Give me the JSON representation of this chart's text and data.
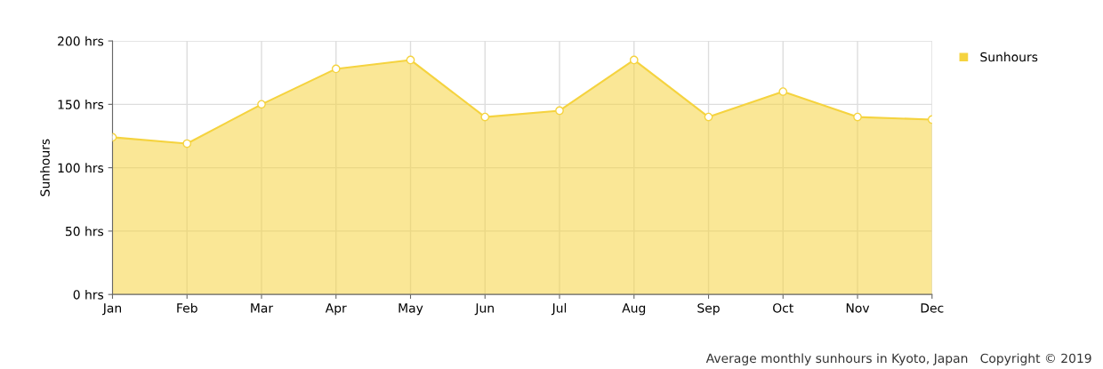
{
  "chart_data": {
    "type": "area",
    "ylabel": "Sunhours",
    "categories": [
      "Jan",
      "Feb",
      "Mar",
      "Apr",
      "May",
      "Jun",
      "Jul",
      "Aug",
      "Sep",
      "Oct",
      "Nov",
      "Dec"
    ],
    "series": [
      {
        "name": "Sunhours",
        "color": "#f5d33f",
        "values": [
          124,
          119,
          150,
          178,
          185,
          140,
          145,
          185,
          140,
          160,
          140,
          138
        ]
      }
    ],
    "ylim": [
      0,
      200
    ],
    "yticks": [
      {
        "value": 0,
        "label": "0 hrs"
      },
      {
        "value": 50,
        "label": "50 hrs"
      },
      {
        "value": 100,
        "label": "100 hrs"
      },
      {
        "value": 150,
        "label": "150 hrs"
      },
      {
        "value": 200,
        "label": "200 hrs"
      }
    ],
    "grid": true,
    "legend": "top right",
    "marker": "circle",
    "annotations": [
      "Average monthly sunhours in Kyoto, Japan   Copyright © 2019"
    ]
  }
}
